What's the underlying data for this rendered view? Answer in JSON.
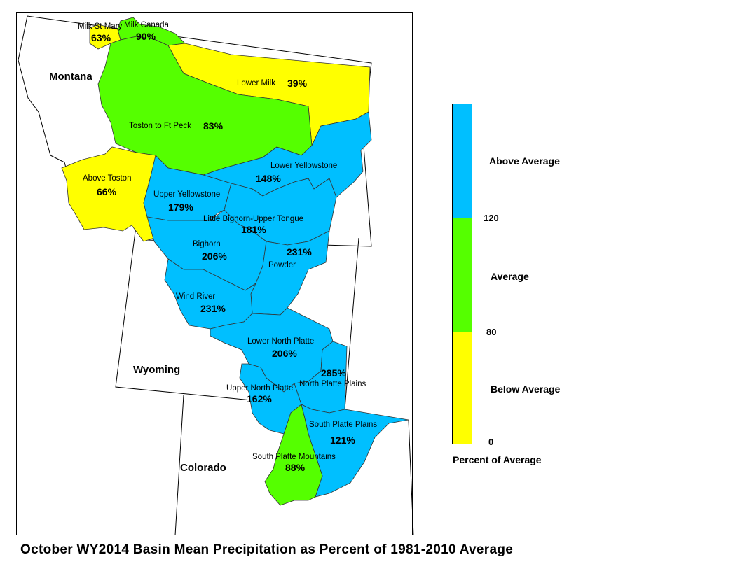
{
  "map": {
    "states": [
      {
        "id": "montana",
        "label": "Montana"
      },
      {
        "id": "wyoming",
        "label": "Wyoming"
      },
      {
        "id": "colorado",
        "label": "Colorado"
      }
    ],
    "basins": [
      {
        "id": "milk-st-mary",
        "name": "Milk St Mary",
        "percent": "63%",
        "category": "below"
      },
      {
        "id": "milk-canada",
        "name": "Milk Canada",
        "percent": "90%",
        "category": "average"
      },
      {
        "id": "lower-milk",
        "name": "Lower Milk",
        "percent": "39%",
        "category": "below"
      },
      {
        "id": "toston-ft-peck",
        "name": "Toston to Ft Peck",
        "percent": "83%",
        "category": "average"
      },
      {
        "id": "above-toston",
        "name": "Above Toston",
        "percent": "66%",
        "category": "below"
      },
      {
        "id": "lower-yellowstone",
        "name": "Lower Yellowstone",
        "percent": "148%",
        "category": "above"
      },
      {
        "id": "upper-yellowstone",
        "name": "Upper Yellowstone",
        "percent": "179%",
        "category": "above"
      },
      {
        "id": "little-bighorn-upper-tongue",
        "name": "Little Bighorn-Upper Tongue",
        "percent": "181%",
        "category": "above"
      },
      {
        "id": "bighorn",
        "name": "Bighorn",
        "percent": "206%",
        "category": "above"
      },
      {
        "id": "powder",
        "name": "Powder",
        "percent": "231%",
        "category": "above"
      },
      {
        "id": "wind-river",
        "name": "Wind River",
        "percent": "231%",
        "category": "above"
      },
      {
        "id": "lower-north-platte",
        "name": "Lower North Platte",
        "percent": "206%",
        "category": "above"
      },
      {
        "id": "north-platte-plains",
        "name": "North Platte Plains",
        "percent": "285%",
        "category": "above"
      },
      {
        "id": "upper-north-platte",
        "name": "Upper North Platte",
        "percent": "162%",
        "category": "above"
      },
      {
        "id": "south-platte-plains",
        "name": "South Platte Plains",
        "percent": "121%",
        "category": "above"
      },
      {
        "id": "south-platte-mountains",
        "name": "South Platte Mountains",
        "percent": "88%",
        "category": "average"
      }
    ]
  },
  "legend": {
    "title": "Percent of Average",
    "categories": {
      "above": {
        "label": "Above Average",
        "color": "#00bfff"
      },
      "average": {
        "label": "Average",
        "color": "#55ff00"
      },
      "below": {
        "label": "Below Average",
        "color": "#ffff00"
      }
    },
    "ticks": [
      "120",
      "80",
      "0"
    ]
  },
  "caption": "October WY2014 Basin Mean Precipitation as Percent of 1981-2010 Average"
}
